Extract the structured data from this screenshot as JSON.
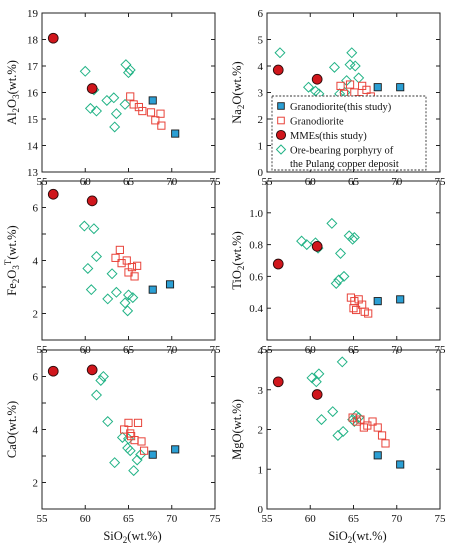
{
  "colors": {
    "granodiorite_this_study": "#2b9fd4",
    "granodiorite": "#e8433a",
    "mmes": "#d0161c",
    "ore_bearing": "#22b386"
  },
  "legend": {
    "panel": "na2o",
    "entries": [
      {
        "series": "granodiorite_this_study",
        "marker": "square-filled",
        "label": "Granodiorite(this study)"
      },
      {
        "series": "granodiorite",
        "marker": "square-open",
        "label": "Granodiorite"
      },
      {
        "series": "mmes",
        "marker": "circle-filled",
        "label": "MMEs(this study)"
      },
      {
        "series": "ore_bearing",
        "marker": "diamond-open",
        "label": "Ore-bearing porphyry of",
        "label2": "the Pulang copper deposit"
      }
    ]
  },
  "chart_data": [
    {
      "id": "al2o3",
      "type": "scatter",
      "ylabel": {
        "base": "Al",
        "sub1": "2",
        "mid": "O",
        "sub2": "3",
        "tail": "(wt.%)"
      },
      "xlabel": {
        "base": "SiO",
        "sub": "2",
        "tail": "(wt.%)"
      },
      "show_xlabel": false,
      "xlim": [
        55,
        75
      ],
      "ylim": [
        13,
        19
      ],
      "xticks": [
        "55",
        "60",
        "65",
        "70",
        "75"
      ],
      "yticks": [
        "13",
        "14",
        "15",
        "16",
        "17",
        "18",
        "19"
      ],
      "series": {
        "granodiorite_this_study": [
          [
            67.8,
            15.7
          ],
          [
            70.4,
            14.45
          ]
        ],
        "granodiorite": [
          [
            65.2,
            15.85
          ],
          [
            65.6,
            15.55
          ],
          [
            66.2,
            15.45
          ],
          [
            66.6,
            15.3
          ],
          [
            67.6,
            15.25
          ],
          [
            68.1,
            14.95
          ],
          [
            68.7,
            15.2
          ],
          [
            68.8,
            14.75
          ]
        ],
        "mmes": [
          [
            56.3,
            18.05
          ],
          [
            60.8,
            16.15
          ]
        ],
        "ore_bearing": [
          [
            60.0,
            16.8
          ],
          [
            61.0,
            16.1
          ],
          [
            60.6,
            15.4
          ],
          [
            61.3,
            15.3
          ],
          [
            62.5,
            15.7
          ],
          [
            63.3,
            15.8
          ],
          [
            63.6,
            15.2
          ],
          [
            63.4,
            14.7
          ],
          [
            64.6,
            15.55
          ],
          [
            64.7,
            17.05
          ],
          [
            65.0,
            16.75
          ],
          [
            65.2,
            16.85
          ]
        ]
      }
    },
    {
      "id": "na2o",
      "type": "scatter",
      "ylabel": {
        "base": "Na",
        "sub1": "2",
        "mid": "O",
        "sub2": "",
        "tail": "(wt.%)"
      },
      "xlabel": {
        "base": "SiO",
        "sub": "2",
        "tail": "(wt.%)"
      },
      "show_xlabel": false,
      "xlim": [
        55,
        75
      ],
      "ylim": [
        0,
        6
      ],
      "xticks": [
        "55",
        "60",
        "65",
        "70",
        "75"
      ],
      "yticks": [
        "0",
        "1",
        "2",
        "3",
        "4",
        "5",
        "6"
      ],
      "series": {
        "granodiorite_this_study": [
          [
            67.8,
            3.2
          ],
          [
            70.4,
            3.2
          ]
        ],
        "granodiorite": [
          [
            63.5,
            3.25
          ],
          [
            63.9,
            2.95
          ],
          [
            64.6,
            3.3
          ],
          [
            65.1,
            3.0
          ],
          [
            65.6,
            2.75
          ],
          [
            66.0,
            3.25
          ],
          [
            66.5,
            3.1
          ],
          [
            67.0,
            2.85
          ]
        ],
        "mmes": [
          [
            56.3,
            3.85
          ],
          [
            60.8,
            3.5
          ]
        ],
        "ore_bearing": [
          [
            56.5,
            4.5
          ],
          [
            59.8,
            3.2
          ],
          [
            60.6,
            3.05
          ],
          [
            61.0,
            2.95
          ],
          [
            62.8,
            3.95
          ],
          [
            63.4,
            2.95
          ],
          [
            64.2,
            3.45
          ],
          [
            64.6,
            4.05
          ],
          [
            64.8,
            4.5
          ],
          [
            65.2,
            4.0
          ],
          [
            64.0,
            3.0
          ],
          [
            65.6,
            3.55
          ]
        ]
      }
    },
    {
      "id": "fe2o3",
      "type": "scatter",
      "ylabel": {
        "base": "Fe",
        "sub1": "2",
        "mid": "O",
        "sub2": "3",
        "sup": "T",
        "tail": "(wt.%)"
      },
      "xlabel": {
        "base": "SiO",
        "sub": "2",
        "tail": "(wt.%)"
      },
      "show_xlabel": false,
      "xlim": [
        55,
        75
      ],
      "ylim": [
        1,
        7
      ],
      "xticks": [
        "55",
        "60",
        "65",
        "70",
        "75"
      ],
      "yticks": [
        "",
        "2",
        "",
        "4",
        "",
        "6",
        ""
      ],
      "series": {
        "granodiorite_this_study": [
          [
            67.8,
            2.9
          ],
          [
            69.8,
            3.1
          ]
        ],
        "granodiorite": [
          [
            63.5,
            4.1
          ],
          [
            64.0,
            4.4
          ],
          [
            64.2,
            3.9
          ],
          [
            64.8,
            4.0
          ],
          [
            65.4,
            3.75
          ],
          [
            65.7,
            3.4
          ],
          [
            66.0,
            3.8
          ],
          [
            65.0,
            3.55
          ]
        ],
        "mmes": [
          [
            56.3,
            6.5
          ],
          [
            60.8,
            6.25
          ]
        ],
        "ore_bearing": [
          [
            59.9,
            5.3
          ],
          [
            60.3,
            3.7
          ],
          [
            60.7,
            2.9
          ],
          [
            61.0,
            5.2
          ],
          [
            61.3,
            4.15
          ],
          [
            62.6,
            2.55
          ],
          [
            63.1,
            3.5
          ],
          [
            63.6,
            2.8
          ],
          [
            64.6,
            2.4
          ],
          [
            64.9,
            2.1
          ],
          [
            65.0,
            2.7
          ],
          [
            65.5,
            2.6
          ]
        ]
      }
    },
    {
      "id": "tio2",
      "type": "scatter",
      "ylabel": {
        "base": "TiO",
        "sub1": "2",
        "mid": "",
        "sub2": "",
        "tail": "(wt.%)"
      },
      "xlabel": {
        "base": "SiO",
        "sub": "2",
        "tail": "(wt.%)"
      },
      "show_xlabel": false,
      "xlim": [
        55,
        75
      ],
      "ylim": [
        0.2,
        1.1
      ],
      "xticks": [
        "55",
        "60",
        "65",
        "70",
        "75"
      ],
      "yticks": [
        "",
        "0.4",
        "0.6",
        "0.8",
        "1.0",
        ""
      ],
      "series": {
        "granodiorite_this_study": [
          [
            67.8,
            0.42
          ],
          [
            70.4,
            0.43
          ]
        ],
        "granodiorite": [
          [
            64.7,
            0.44
          ],
          [
            65.1,
            0.42
          ],
          [
            65.3,
            0.37
          ],
          [
            65.6,
            0.43
          ],
          [
            66.0,
            0.4
          ],
          [
            66.3,
            0.36
          ],
          [
            66.7,
            0.35
          ],
          [
            65.0,
            0.38
          ]
        ],
        "mmes": [
          [
            56.3,
            0.63
          ],
          [
            60.8,
            0.73
          ]
        ],
        "ore_bearing": [
          [
            59.0,
            0.76
          ],
          [
            59.6,
            0.74
          ],
          [
            60.6,
            0.75
          ],
          [
            60.9,
            0.72
          ],
          [
            62.5,
            0.86
          ],
          [
            63.0,
            0.52
          ],
          [
            63.3,
            0.54
          ],
          [
            63.5,
            0.69
          ],
          [
            63.9,
            0.56
          ],
          [
            64.5,
            0.79
          ],
          [
            64.9,
            0.77
          ],
          [
            65.1,
            0.78
          ]
        ]
      }
    },
    {
      "id": "cao",
      "type": "scatter",
      "ylabel": {
        "base": "CaO",
        "sub1": "",
        "mid": "",
        "sub2": "",
        "tail": "(wt.%)"
      },
      "xlabel": {
        "base": "SiO",
        "sub": "2",
        "tail": "(wt.%)"
      },
      "show_xlabel": true,
      "xlim": [
        55,
        75
      ],
      "ylim": [
        1,
        7
      ],
      "xticks": [
        "55",
        "60",
        "65",
        "70",
        "75"
      ],
      "yticks": [
        "",
        "2",
        "",
        "4",
        "",
        "6",
        ""
      ],
      "series": {
        "granodiorite_this_study": [
          [
            67.8,
            3.05
          ],
          [
            70.4,
            3.25
          ]
        ],
        "granodiorite": [
          [
            64.5,
            4.0
          ],
          [
            65.0,
            4.25
          ],
          [
            65.3,
            3.75
          ],
          [
            65.7,
            3.6
          ],
          [
            66.1,
            4.25
          ],
          [
            66.5,
            3.55
          ],
          [
            66.8,
            3.2
          ],
          [
            65.2,
            3.85
          ]
        ],
        "mmes": [
          [
            56.3,
            6.2
          ],
          [
            60.8,
            6.25
          ]
        ],
        "ore_bearing": [
          [
            61.3,
            5.3
          ],
          [
            61.8,
            5.85
          ],
          [
            62.1,
            6.0
          ],
          [
            62.6,
            4.3
          ],
          [
            63.4,
            2.75
          ],
          [
            64.3,
            3.7
          ],
          [
            64.9,
            3.3
          ],
          [
            65.2,
            3.2
          ],
          [
            65.6,
            2.45
          ],
          [
            66.0,
            2.85
          ],
          [
            66.4,
            3.05
          ],
          [
            65.0,
            3.65
          ]
        ]
      }
    },
    {
      "id": "mgo",
      "type": "scatter",
      "ylabel": {
        "base": "MgO",
        "sub1": "",
        "mid": "",
        "sub2": "",
        "tail": "(wt.%)"
      },
      "xlabel": {
        "base": "SiO",
        "sub": "2",
        "tail": "(wt.%)"
      },
      "show_xlabel": true,
      "xlim": [
        55,
        75
      ],
      "ylim": [
        0,
        4
      ],
      "xticks": [
        "55",
        "60",
        "65",
        "70",
        "75"
      ],
      "yticks": [
        "0",
        "1",
        "2",
        "3",
        "4"
      ],
      "series": {
        "granodiorite_this_study": [
          [
            67.8,
            1.35
          ],
          [
            70.4,
            1.12
          ]
        ],
        "granodiorite": [
          [
            64.9,
            2.3
          ],
          [
            65.4,
            2.2
          ],
          [
            65.8,
            2.25
          ],
          [
            66.2,
            2.05
          ],
          [
            66.6,
            2.1
          ],
          [
            67.2,
            2.2
          ],
          [
            67.8,
            2.05
          ],
          [
            68.3,
            1.85
          ],
          [
            68.7,
            1.65
          ]
        ],
        "mmes": [
          [
            56.3,
            3.2
          ],
          [
            60.8,
            2.88
          ]
        ],
        "ore_bearing": [
          [
            60.2,
            3.3
          ],
          [
            60.7,
            3.2
          ],
          [
            61.0,
            3.4
          ],
          [
            61.3,
            2.25
          ],
          [
            62.6,
            2.45
          ],
          [
            63.2,
            1.85
          ],
          [
            63.8,
            1.95
          ],
          [
            63.7,
            3.7
          ],
          [
            64.9,
            2.25
          ],
          [
            65.3,
            2.35
          ],
          [
            65.6,
            2.3
          ],
          [
            65.1,
            2.2
          ]
        ]
      }
    }
  ]
}
